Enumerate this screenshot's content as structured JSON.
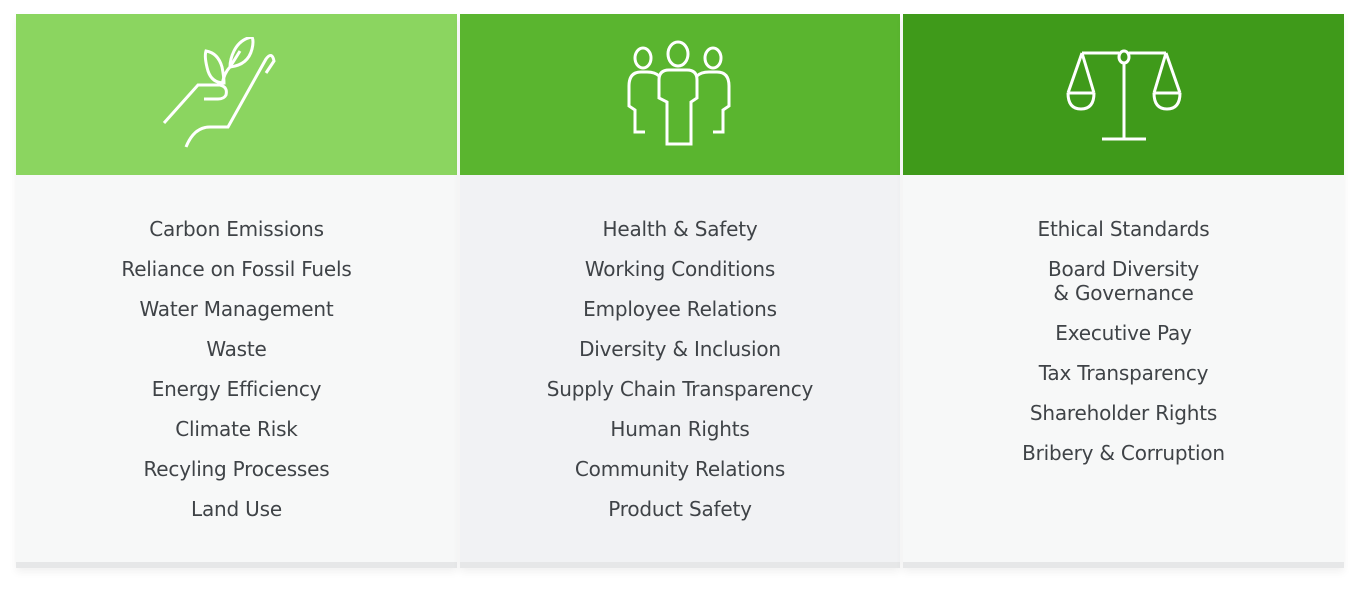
{
  "colors": {
    "environment": "#8bd560",
    "social": "#5ab52f",
    "governance": "#3f9a1a",
    "body_light": "#f7f8f8",
    "body_mid": "#f1f2f4",
    "text": "#3f4347"
  },
  "columns": [
    {
      "icon": "hand-plant-icon",
      "items": [
        "Carbon Emissions",
        "Reliance on Fossil Fuels",
        "Water Management",
        "Waste",
        "Energy Efficiency",
        "Climate Risk",
        "Recyling Processes",
        "Land Use"
      ]
    },
    {
      "icon": "people-group-icon",
      "items": [
        "Health & Safety",
        "Working Conditions",
        "Employee Relations",
        "Diversity & Inclusion",
        "Supply Chain Transparency",
        "Human Rights",
        "Community Relations",
        "Product Safety"
      ]
    },
    {
      "icon": "scales-icon",
      "items": [
        "Ethical Standards",
        "Board Diversity\n& Governance",
        "Executive Pay",
        "Tax Transparency",
        "Shareholder Rights",
        "Bribery & Corruption"
      ]
    }
  ]
}
